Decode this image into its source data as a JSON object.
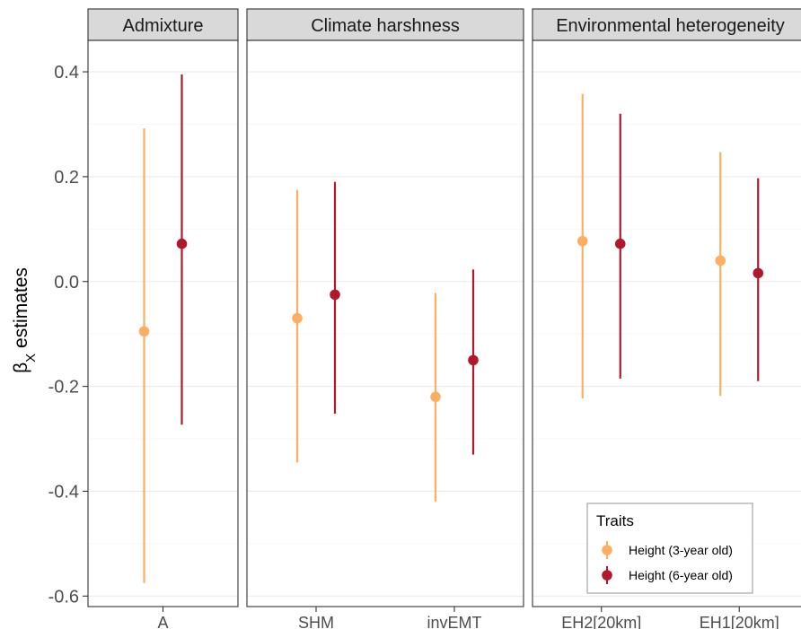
{
  "chart_data": {
    "type": "pointrange",
    "ylabel": {
      "main": "β",
      "sub": "X",
      "rest": " estimates"
    },
    "ylim": [
      -0.62,
      0.46
    ],
    "yticks": [
      0.4,
      0.2,
      0.0,
      -0.2,
      -0.4,
      -0.6
    ],
    "ytick_labels": [
      "0.4",
      "0.2",
      "0.0",
      "-0.2",
      "-0.4",
      "-0.6"
    ],
    "grid": true,
    "legend": {
      "title": "Traits",
      "placement": "bottom-right",
      "entries": [
        "Height (3-year old)",
        "Height (6-year old)"
      ]
    },
    "series": [
      {
        "name": "Height (3-year old)",
        "color": "#fdae61"
      },
      {
        "name": "Height (6-year old)",
        "color": "#b2182b"
      }
    ],
    "panels": [
      {
        "title": "Admixture",
        "categories": [
          "A"
        ],
        "values": [
          [
            {
              "estimate": -0.095,
              "lower": -0.575,
              "upper": 0.292
            }
          ],
          [
            {
              "estimate": 0.072,
              "lower": -0.273,
              "upper": 0.395
            }
          ]
        ]
      },
      {
        "title": "Climate harshness",
        "categories": [
          "SHM",
          "invEMT"
        ],
        "values": [
          [
            {
              "estimate": -0.07,
              "lower": -0.345,
              "upper": 0.175
            },
            {
              "estimate": -0.22,
              "lower": -0.42,
              "upper": -0.022
            }
          ],
          [
            {
              "estimate": -0.025,
              "lower": -0.252,
              "upper": 0.19
            },
            {
              "estimate": -0.15,
              "lower": -0.33,
              "upper": 0.023
            }
          ]
        ]
      },
      {
        "title": "Environmental heterogeneity",
        "categories": [
          "EH2[20km]",
          "EH1[20km]"
        ],
        "values": [
          [
            {
              "estimate": 0.077,
              "lower": -0.223,
              "upper": 0.358
            },
            {
              "estimate": 0.04,
              "lower": -0.218,
              "upper": 0.247
            }
          ],
          [
            {
              "estimate": 0.072,
              "lower": -0.185,
              "upper": 0.32
            },
            {
              "estimate": 0.016,
              "lower": -0.19,
              "upper": 0.197
            }
          ]
        ]
      }
    ]
  }
}
